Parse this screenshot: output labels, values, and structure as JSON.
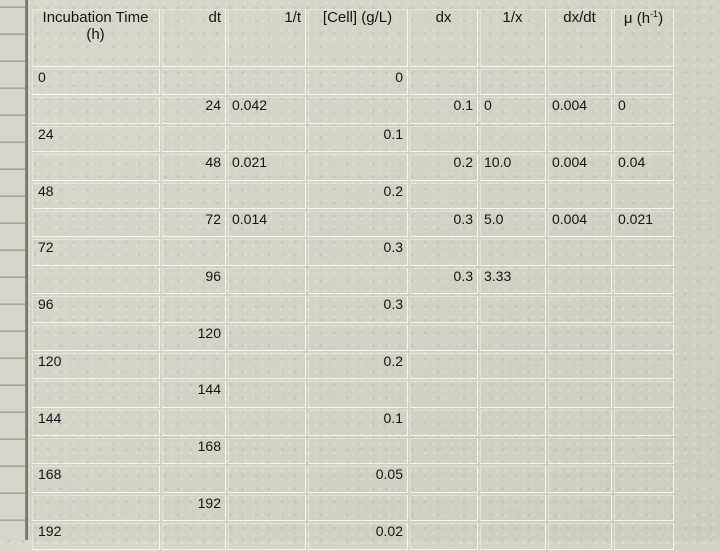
{
  "headers": {
    "incubation_time": "Incubation Time (h)",
    "dt": "dt",
    "inv_t": "1/t",
    "cell": "[Cell] (g/L)",
    "dx": "dx",
    "inv_x": "1/x",
    "dxdt": "dx/dt",
    "mu": "μ  (h",
    "mu_sup": "-1",
    "mu_close": ")"
  },
  "rows": [
    {
      "time": "0",
      "cell": "0"
    },
    {
      "dt": "24",
      "inv_t": "0.042",
      "dx": "0.1",
      "inv_x": "0",
      "dxdt": "0.004",
      "mu": "0"
    },
    {
      "time": "24",
      "cell": "0.1"
    },
    {
      "dt": "48",
      "inv_t": "0.021",
      "dx": "0.2",
      "inv_x": "10.0",
      "dxdt": "0.004",
      "mu": "0.04"
    },
    {
      "time": "48",
      "cell": "0.2"
    },
    {
      "dt": "72",
      "inv_t": "0.014",
      "dx": "0.3",
      "inv_x": "5.0",
      "dxdt": "0.004",
      "mu": "0.021"
    },
    {
      "time": "72",
      "cell": "0.3"
    },
    {
      "dt": "96",
      "dx": "0.3",
      "inv_x": "3.33"
    },
    {
      "time": "96",
      "cell": "0.3"
    },
    {
      "dt": "120"
    },
    {
      "time": "120",
      "cell": "0.2"
    },
    {
      "dt": "144"
    },
    {
      "time": "144",
      "cell": "0.1"
    },
    {
      "dt": "168"
    },
    {
      "time": "168",
      "cell": "0.05"
    },
    {
      "dt": "192"
    },
    {
      "time": "192",
      "cell": "0.02"
    }
  ]
}
